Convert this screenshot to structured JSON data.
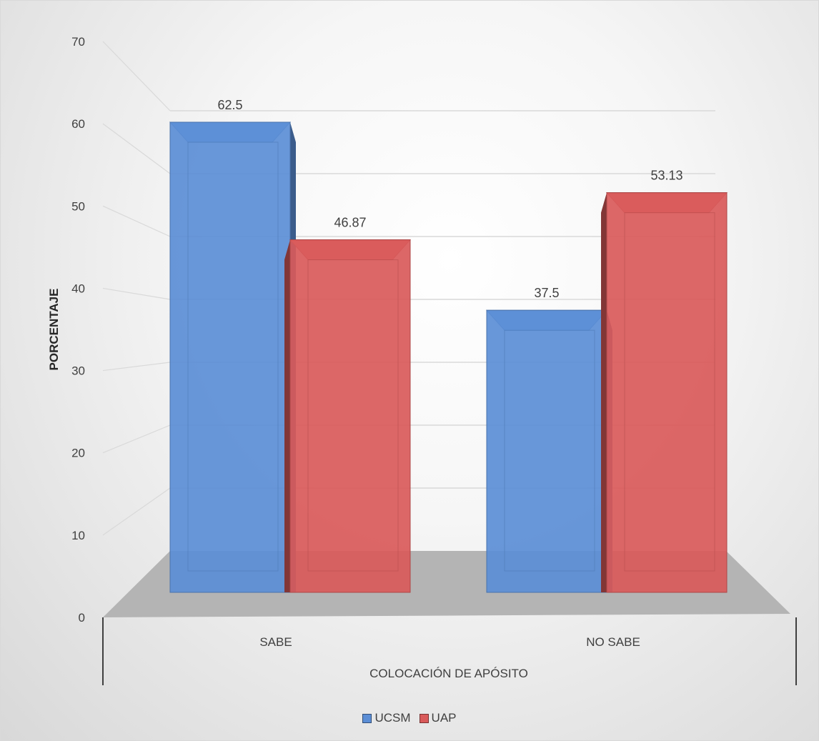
{
  "chart_data": {
    "type": "bar",
    "title": "",
    "categories": [
      "SABE",
      "NO SABE"
    ],
    "series": [
      {
        "name": "UCSM",
        "values": [
          62.5,
          37.5
        ],
        "color": "#5b8ed6"
      },
      {
        "name": "UAP",
        "values": [
          46.87,
          53.13
        ],
        "color": "#d95a5a"
      }
    ],
    "data_labels": [
      [
        "62.5",
        "37.5"
      ],
      [
        "46.87",
        "53.13"
      ]
    ],
    "xlabel": "COLOCACIÓN DE APÓSITO",
    "ylabel": "PORCENTAJE",
    "ylim": [
      0,
      70
    ],
    "yticks": [
      0,
      10,
      20,
      30,
      40,
      50,
      60,
      70
    ],
    "grid": true,
    "style": "3d-clustered-column",
    "legend_position": "bottom"
  }
}
